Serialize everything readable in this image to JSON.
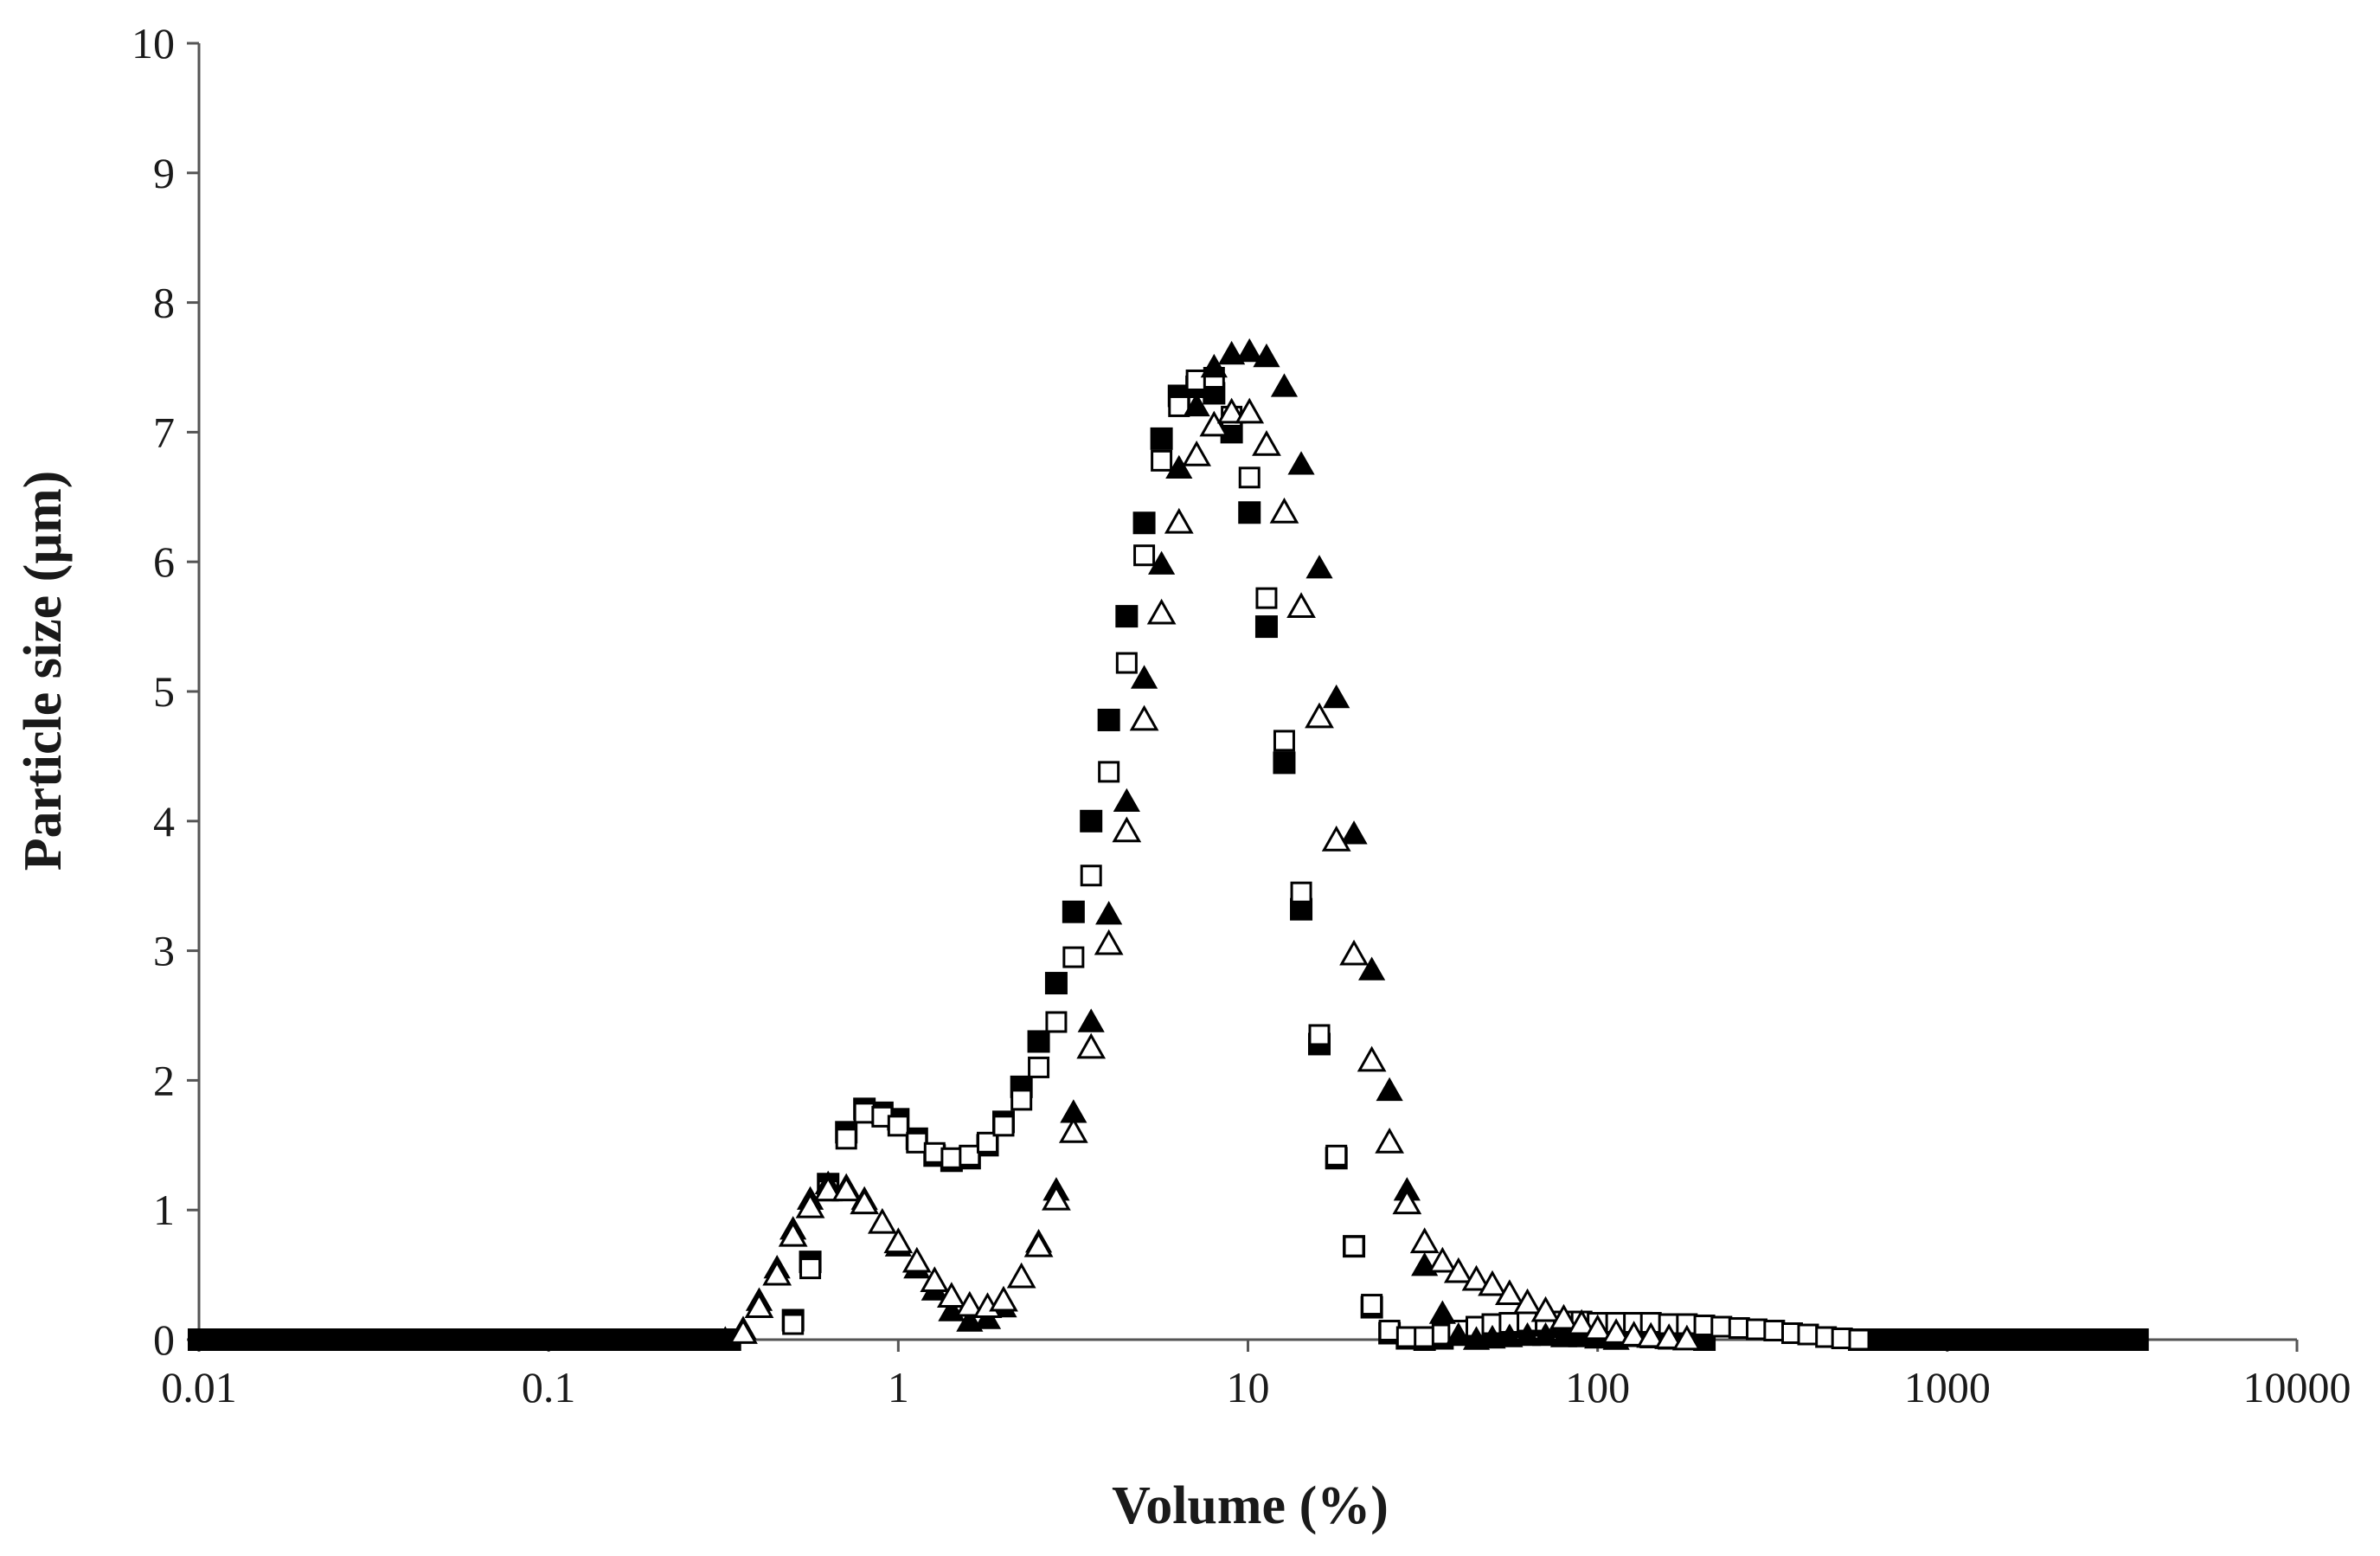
{
  "chart_data": {
    "type": "scatter",
    "title": "",
    "xlabel": "Volume (%)",
    "ylabel": "Particle size (µm)",
    "x_scale": "log",
    "xlim": [
      0.01,
      10000
    ],
    "ylim": [
      0,
      10
    ],
    "x_ticks": [
      "0.01",
      "0.1",
      "1",
      "10",
      "100",
      "1000",
      "10000"
    ],
    "y_ticks": [
      "0",
      "1",
      "2",
      "3",
      "4",
      "5",
      "6",
      "7",
      "8",
      "9",
      "10"
    ],
    "grid": false,
    "legend": "none",
    "series": [
      {
        "marker": "filled-square",
        "color": "#000000",
        "points": [
          [
            0.5,
            0.15
          ],
          [
            0.56,
            0.6
          ],
          [
            0.63,
            1.2
          ],
          [
            0.71,
            1.6
          ],
          [
            0.8,
            1.78
          ],
          [
            0.9,
            1.75
          ],
          [
            1.0,
            1.7
          ],
          [
            1.13,
            1.55
          ],
          [
            1.27,
            1.42
          ],
          [
            1.42,
            1.38
          ],
          [
            1.6,
            1.4
          ],
          [
            1.8,
            1.5
          ],
          [
            2.0,
            1.68
          ],
          [
            2.25,
            1.95
          ],
          [
            2.52,
            2.3
          ],
          [
            2.83,
            2.75
          ],
          [
            3.17,
            3.3
          ],
          [
            3.56,
            4.0
          ],
          [
            4.0,
            4.78
          ],
          [
            4.5,
            5.58
          ],
          [
            5.05,
            6.3
          ],
          [
            5.66,
            6.95
          ],
          [
            6.35,
            7.28
          ],
          [
            7.13,
            7.35
          ],
          [
            8.0,
            7.3
          ],
          [
            8.98,
            7.0
          ],
          [
            10.1,
            6.38
          ],
          [
            11.3,
            5.5
          ],
          [
            12.7,
            4.45
          ],
          [
            14.2,
            3.32
          ],
          [
            16.0,
            2.28
          ],
          [
            17.9,
            1.4
          ],
          [
            20.1,
            0.72
          ],
          [
            22.6,
            0.25
          ],
          [
            25.4,
            0.05
          ],
          [
            28.5,
            0.01
          ],
          [
            32,
            0.0
          ],
          [
            36,
            0.01
          ],
          [
            40,
            0.04
          ],
          [
            45,
            0.07
          ],
          [
            50,
            0.09
          ],
          [
            56,
            0.1
          ],
          [
            63,
            0.11
          ],
          [
            71,
            0.11
          ],
          [
            80,
            0.1
          ],
          [
            90,
            0.08
          ],
          [
            100,
            0.06
          ],
          [
            113,
            0.04
          ],
          [
            127,
            0.03
          ],
          [
            142,
            0.02
          ],
          [
            160,
            0.01
          ],
          [
            180,
            0.01
          ],
          [
            202,
            0.0
          ]
        ]
      },
      {
        "marker": "open-square",
        "color": "#000000",
        "points": [
          [
            0.5,
            0.12
          ],
          [
            0.56,
            0.55
          ],
          [
            0.63,
            1.15
          ],
          [
            0.71,
            1.55
          ],
          [
            0.8,
            1.75
          ],
          [
            0.9,
            1.72
          ],
          [
            1.0,
            1.65
          ],
          [
            1.13,
            1.52
          ],
          [
            1.27,
            1.44
          ],
          [
            1.42,
            1.4
          ],
          [
            1.6,
            1.42
          ],
          [
            1.8,
            1.52
          ],
          [
            2.0,
            1.65
          ],
          [
            2.25,
            1.85
          ],
          [
            2.52,
            2.1
          ],
          [
            2.83,
            2.45
          ],
          [
            3.17,
            2.95
          ],
          [
            3.56,
            3.58
          ],
          [
            4.0,
            4.38
          ],
          [
            4.5,
            5.22
          ],
          [
            5.05,
            6.05
          ],
          [
            5.66,
            6.78
          ],
          [
            6.35,
            7.2
          ],
          [
            7.13,
            7.4
          ],
          [
            8.0,
            7.42
          ],
          [
            8.98,
            7.12
          ],
          [
            10.1,
            6.65
          ],
          [
            11.3,
            5.72
          ],
          [
            12.7,
            4.62
          ],
          [
            14.2,
            3.45
          ],
          [
            16.0,
            2.35
          ],
          [
            17.9,
            1.42
          ],
          [
            20.1,
            0.72
          ],
          [
            22.6,
            0.27
          ],
          [
            25.4,
            0.07
          ],
          [
            28.5,
            0.02
          ],
          [
            32,
            0.02
          ],
          [
            36,
            0.04
          ],
          [
            40,
            0.07
          ],
          [
            45,
            0.1
          ],
          [
            50,
            0.12
          ],
          [
            56,
            0.13
          ],
          [
            63,
            0.14
          ],
          [
            71,
            0.14
          ],
          [
            80,
            0.14
          ],
          [
            90,
            0.14
          ],
          [
            100,
            0.13
          ],
          [
            113,
            0.13
          ],
          [
            127,
            0.13
          ],
          [
            142,
            0.13
          ],
          [
            160,
            0.12
          ],
          [
            180,
            0.12
          ],
          [
            202,
            0.11
          ],
          [
            226,
            0.1
          ],
          [
            254,
            0.09
          ],
          [
            285,
            0.08
          ],
          [
            320,
            0.07
          ],
          [
            360,
            0.05
          ],
          [
            400,
            0.04
          ],
          [
            450,
            0.02
          ],
          [
            500,
            0.01
          ],
          [
            560,
            0.0
          ]
        ]
      },
      {
        "marker": "filled-triangle",
        "color": "#000000",
        "points": [
          [
            0.32,
            0.0
          ],
          [
            0.36,
            0.08
          ],
          [
            0.4,
            0.3
          ],
          [
            0.45,
            0.55
          ],
          [
            0.5,
            0.85
          ],
          [
            0.56,
            1.08
          ],
          [
            0.63,
            1.2
          ],
          [
            0.71,
            1.18
          ],
          [
            0.8,
            1.08
          ],
          [
            0.9,
            0.9
          ],
          [
            1.0,
            0.72
          ],
          [
            1.13,
            0.55
          ],
          [
            1.27,
            0.38
          ],
          [
            1.42,
            0.22
          ],
          [
            1.6,
            0.14
          ],
          [
            1.8,
            0.16
          ],
          [
            2.0,
            0.25
          ],
          [
            2.25,
            0.48
          ],
          [
            2.52,
            0.75
          ],
          [
            2.83,
            1.15
          ],
          [
            3.17,
            1.75
          ],
          [
            3.56,
            2.45
          ],
          [
            4.0,
            3.28
          ],
          [
            4.5,
            4.15
          ],
          [
            5.05,
            5.1
          ],
          [
            5.66,
            5.98
          ],
          [
            6.35,
            6.72
          ],
          [
            7.13,
            7.2
          ],
          [
            8.0,
            7.5
          ],
          [
            8.98,
            7.6
          ],
          [
            10.1,
            7.62
          ],
          [
            11.3,
            7.58
          ],
          [
            12.7,
            7.35
          ],
          [
            14.2,
            6.75
          ],
          [
            16.0,
            5.95
          ],
          [
            17.9,
            4.95
          ],
          [
            20.1,
            3.9
          ],
          [
            22.6,
            2.85
          ],
          [
            25.4,
            1.92
          ],
          [
            28.5,
            1.15
          ],
          [
            32,
            0.57
          ],
          [
            36,
            0.2
          ],
          [
            40,
            0.03
          ],
          [
            45,
            0.0
          ],
          [
            50,
            0.01
          ],
          [
            56,
            0.02
          ],
          [
            63,
            0.03
          ],
          [
            71,
            0.03
          ],
          [
            80,
            0.02
          ],
          [
            90,
            0.02
          ],
          [
            100,
            0.01
          ],
          [
            113,
            0.0
          ]
        ]
      },
      {
        "marker": "open-triangle",
        "color": "#000000",
        "points": [
          [
            0.36,
            0.05
          ],
          [
            0.4,
            0.25
          ],
          [
            0.45,
            0.5
          ],
          [
            0.5,
            0.8
          ],
          [
            0.56,
            1.02
          ],
          [
            0.63,
            1.15
          ],
          [
            0.71,
            1.15
          ],
          [
            0.8,
            1.05
          ],
          [
            0.9,
            0.9
          ],
          [
            1.0,
            0.75
          ],
          [
            1.13,
            0.6
          ],
          [
            1.27,
            0.45
          ],
          [
            1.42,
            0.33
          ],
          [
            1.6,
            0.26
          ],
          [
            1.8,
            0.25
          ],
          [
            2.0,
            0.3
          ],
          [
            2.25,
            0.48
          ],
          [
            2.52,
            0.72
          ],
          [
            2.83,
            1.08
          ],
          [
            3.17,
            1.6
          ],
          [
            3.56,
            2.25
          ],
          [
            4.0,
            3.05
          ],
          [
            4.5,
            3.92
          ],
          [
            5.05,
            4.78
          ],
          [
            5.66,
            5.6
          ],
          [
            6.35,
            6.3
          ],
          [
            7.13,
            6.82
          ],
          [
            8.0,
            7.05
          ],
          [
            8.98,
            7.15
          ],
          [
            10.1,
            7.15
          ],
          [
            11.3,
            6.9
          ],
          [
            12.7,
            6.38
          ],
          [
            14.2,
            5.65
          ],
          [
            16.0,
            4.8
          ],
          [
            17.9,
            3.85
          ],
          [
            20.1,
            2.97
          ],
          [
            22.6,
            2.15
          ],
          [
            25.4,
            1.52
          ],
          [
            28.5,
            1.05
          ],
          [
            32,
            0.75
          ],
          [
            36,
            0.6
          ],
          [
            40,
            0.52
          ],
          [
            45,
            0.46
          ],
          [
            50,
            0.42
          ],
          [
            56,
            0.35
          ],
          [
            63,
            0.28
          ],
          [
            71,
            0.22
          ],
          [
            80,
            0.16
          ],
          [
            90,
            0.12
          ],
          [
            100,
            0.08
          ],
          [
            113,
            0.05
          ],
          [
            127,
            0.03
          ],
          [
            142,
            0.02
          ],
          [
            160,
            0.01
          ],
          [
            180,
            0.0
          ]
        ]
      }
    ]
  }
}
